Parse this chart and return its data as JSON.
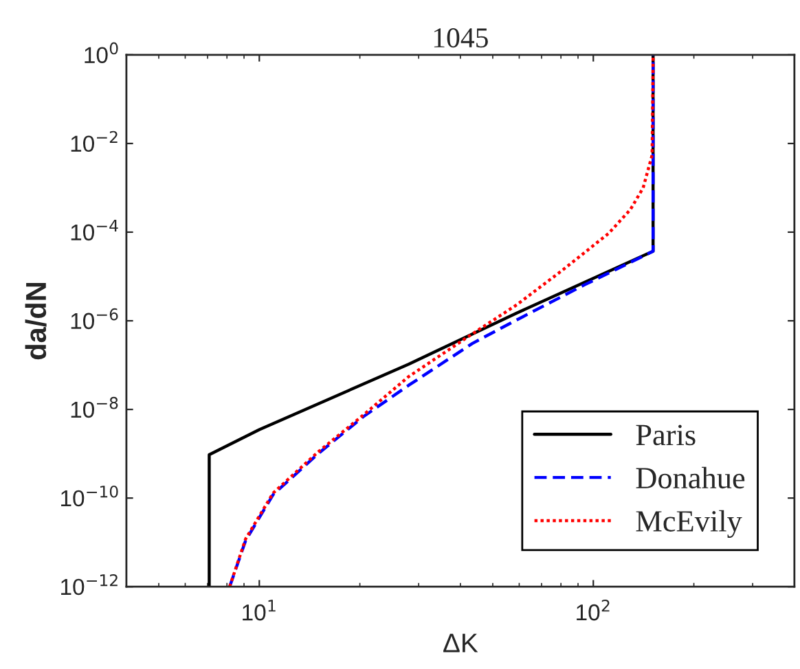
{
  "chart_data": {
    "type": "line",
    "title": "1045",
    "xlabel": "ΔK",
    "ylabel": "da/dN",
    "log": "xy",
    "grid": false,
    "legend": "bottom right",
    "xlim": [
      4,
      400
    ],
    "xticks": [
      {
        "value": 10,
        "label": "10$^{1}$"
      },
      {
        "value": 100,
        "label": "10$^{2}$"
      }
    ],
    "ylim": [
      1e-12,
      1
    ],
    "yticks": [
      {
        "value": 1e-12,
        "label": "10$^{−12}$"
      },
      {
        "value": 1e-10,
        "label": "10$^{−10}$"
      },
      {
        "value": 1e-08,
        "label": "10$^{−8}$"
      },
      {
        "value": 1e-06,
        "label": "10$^{−6}$"
      },
      {
        "value": 0.0001,
        "label": "10$^{−4}$"
      },
      {
        "value": 0.01,
        "label": "10$^{−2}$"
      },
      {
        "value": 1,
        "label": "10$^{0}$"
      }
    ],
    "series": [
      {
        "name": "Paris",
        "color": "#000000",
        "line_style": "solid",
        "x": [
          7.08,
          7.08,
          10,
          28,
          59,
          151,
          151
        ],
        "values": [
          1e-12,
          9.5e-10,
          3.5e-09,
          1.05e-07,
          1.5e-06,
          3.7e-05,
          1
        ]
      },
      {
        "name": "Donahue",
        "color": "#0000ff",
        "line_style": "dashed",
        "x": [
          8.15,
          9.1,
          11,
          15,
          20.5,
          28,
          43.5,
          59,
          94.6,
          151,
          151
        ],
        "values": [
          1e-12,
          1.1e-11,
          1.2e-10,
          1e-09,
          6.9e-09,
          3.5e-08,
          3.1e-07,
          1.05e-06,
          6.6e-06,
          3.7e-05,
          1
        ]
      },
      {
        "name": "McEvily",
        "color": "#ff0000",
        "line_style": "dotted",
        "x": [
          8.15,
          9.1,
          11,
          15,
          20.5,
          28,
          43.5,
          59,
          80.5,
          111,
          129,
          141,
          150,
          151
        ],
        "values": [
          1e-12,
          1.2e-11,
          1.3e-10,
          1.1e-09,
          7.5e-09,
          5.5e-08,
          5.1e-07,
          2.3e-06,
          1.35e-05,
          9.3e-05,
          0.00032,
          0.001,
          0.0055,
          1
        ]
      }
    ]
  }
}
